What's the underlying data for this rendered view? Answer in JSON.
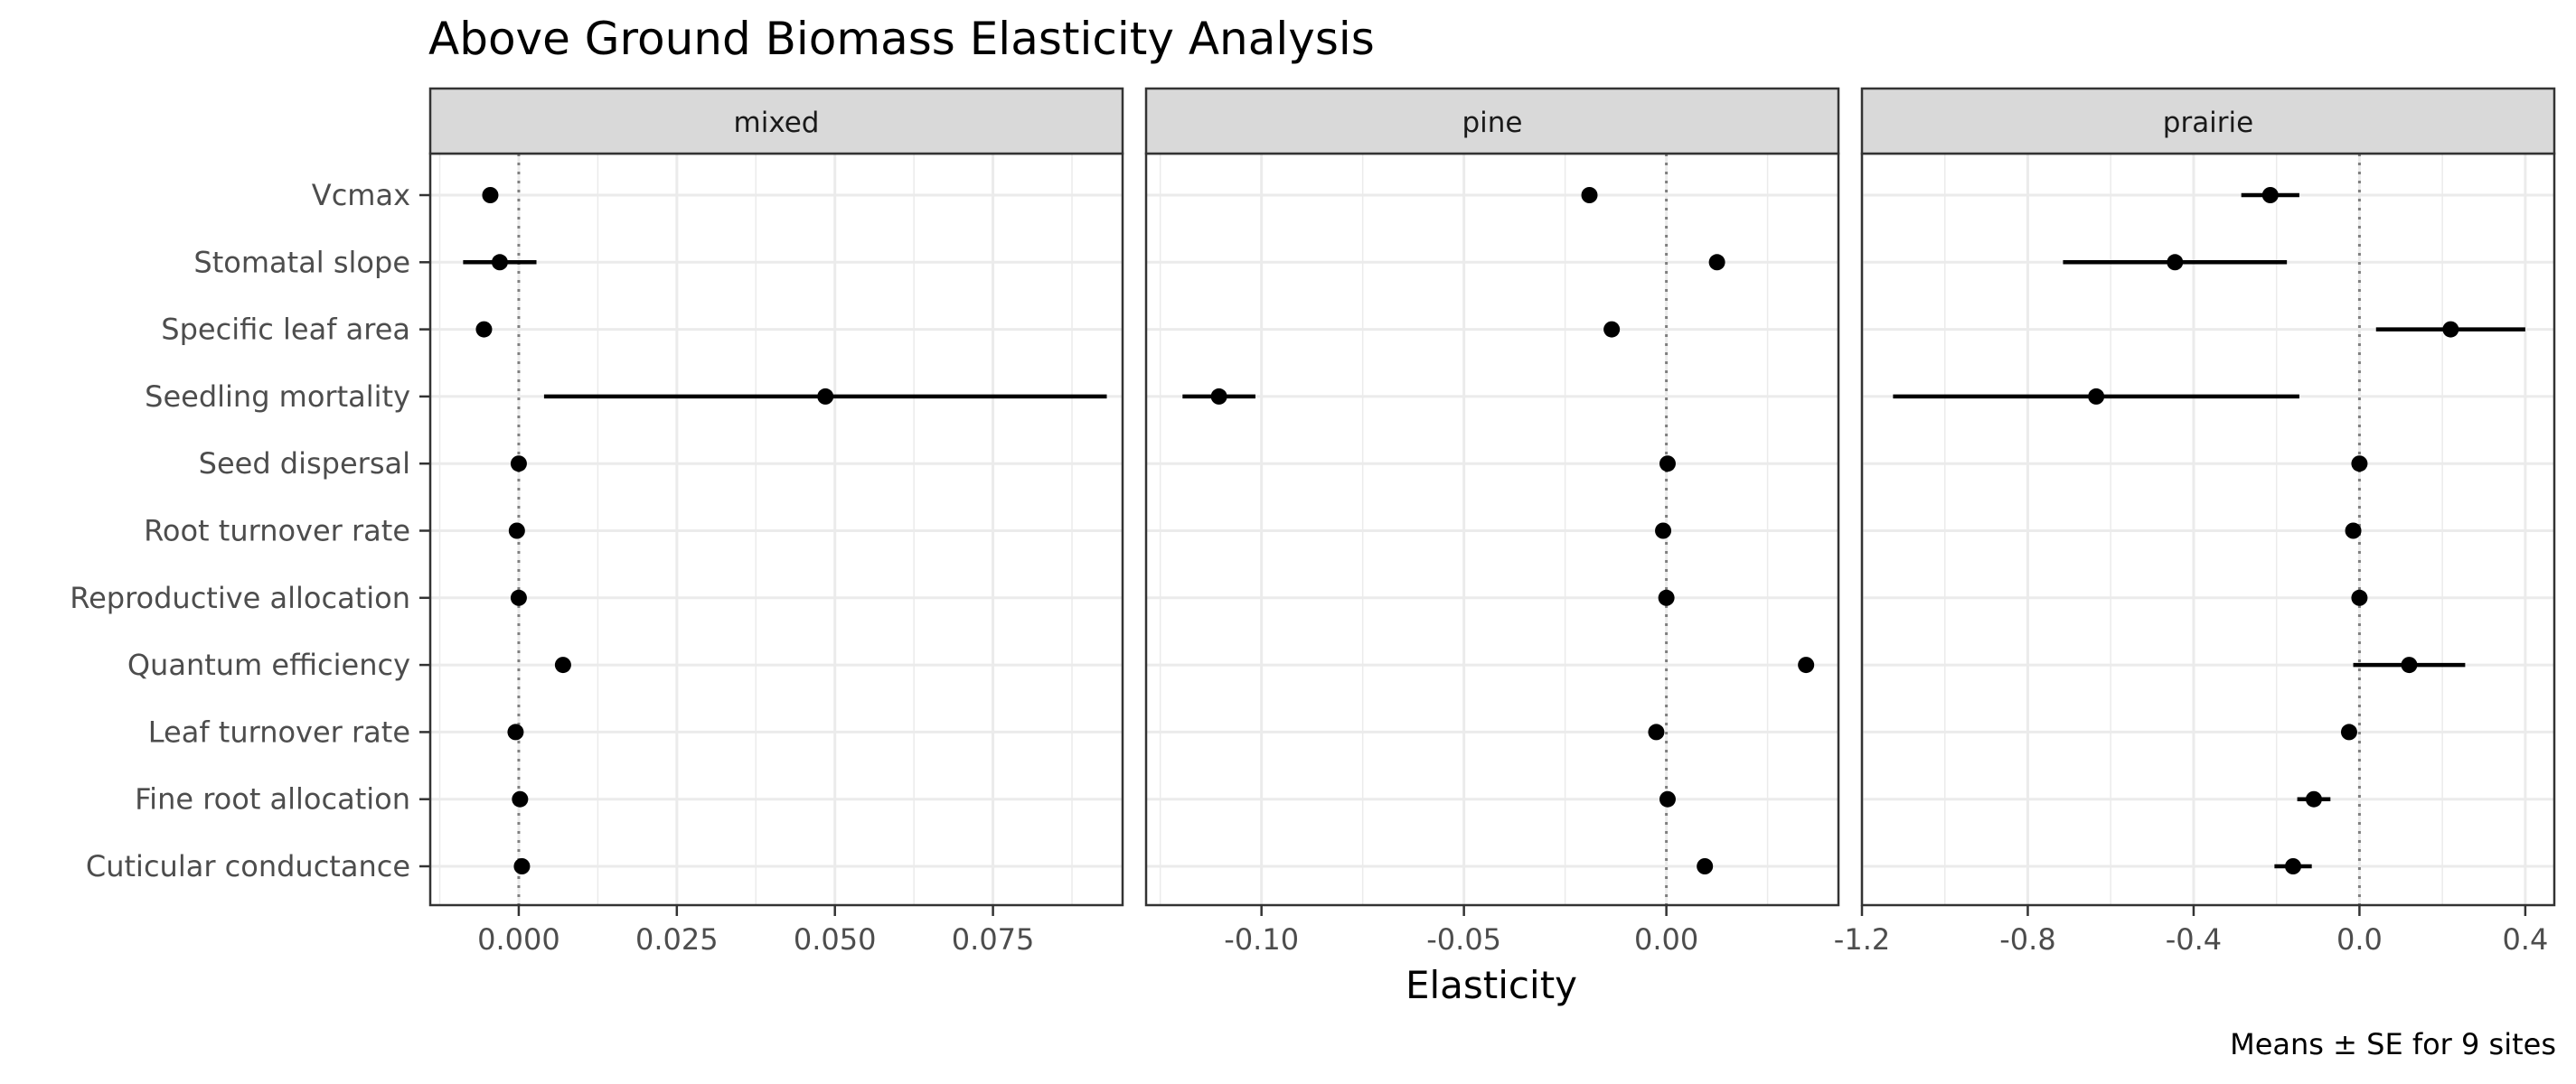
{
  "chart_data": {
    "type": "dot-errorbar",
    "title": "Above Ground Biomass Elasticity Analysis",
    "xlabel": "Elasticity",
    "caption": "Means ± SE for 9 sites",
    "parameters": [
      "Vcmax",
      "Stomatal slope",
      "Specific leaf area",
      "Seedling mortality",
      "Seed dispersal",
      "Root turnover rate",
      "Reproductive allocation",
      "Quantum efficiency",
      "Leaf turnover rate",
      "Fine root allocation",
      "Cuticular conductance"
    ],
    "reference_line": 0,
    "panels": [
      {
        "name": "mixed",
        "xlim": [
          -0.014,
          0.0955
        ],
        "ticks": [
          0.0,
          0.025,
          0.05,
          0.075
        ],
        "tick_labels": [
          "0.000",
          "0.025",
          "0.050",
          "0.075"
        ],
        "means": [
          -0.0045,
          -0.003,
          -0.0055,
          0.0485,
          0.0,
          -0.0003,
          0.0,
          0.007,
          -0.0005,
          0.0002,
          0.0005
        ],
        "se": [
          0.0,
          0.0058,
          0.0,
          0.0445,
          0.0,
          0.0,
          0.0,
          0.0,
          0.0,
          0.0,
          0.0
        ]
      },
      {
        "name": "pine",
        "xlim": [
          -0.1285,
          0.0425
        ],
        "ticks": [
          -0.1,
          -0.05,
          0.0
        ],
        "tick_labels": [
          "-0.10",
          "-0.05",
          "0.00"
        ],
        "means": [
          -0.019,
          0.0125,
          -0.0135,
          -0.1105,
          0.0003,
          -0.0008,
          0.0,
          0.0345,
          -0.0025,
          0.0003,
          0.0095
        ],
        "se": [
          0.0,
          0.0,
          0.0008,
          0.009,
          0.0,
          0.0,
          0.0,
          0.0,
          0.0,
          0.0,
          0.0
        ]
      },
      {
        "name": "prairie",
        "xlim": [
          -1.2,
          0.47
        ],
        "ticks": [
          -1.2,
          -0.8,
          -0.4,
          0.0,
          0.4
        ],
        "tick_labels": [
          "-1.2",
          "-0.8",
          "-0.4",
          "0.0",
          "0.4"
        ],
        "means": [
          -0.215,
          -0.445,
          0.22,
          -0.635,
          0.0,
          -0.015,
          0.0,
          0.12,
          -0.025,
          -0.11,
          -0.16
        ],
        "se": [
          0.07,
          0.27,
          0.18,
          0.49,
          0.0,
          0.0,
          0.0,
          0.135,
          0.0,
          0.04,
          0.045
        ]
      }
    ],
    "grid": true,
    "legend": "none"
  }
}
